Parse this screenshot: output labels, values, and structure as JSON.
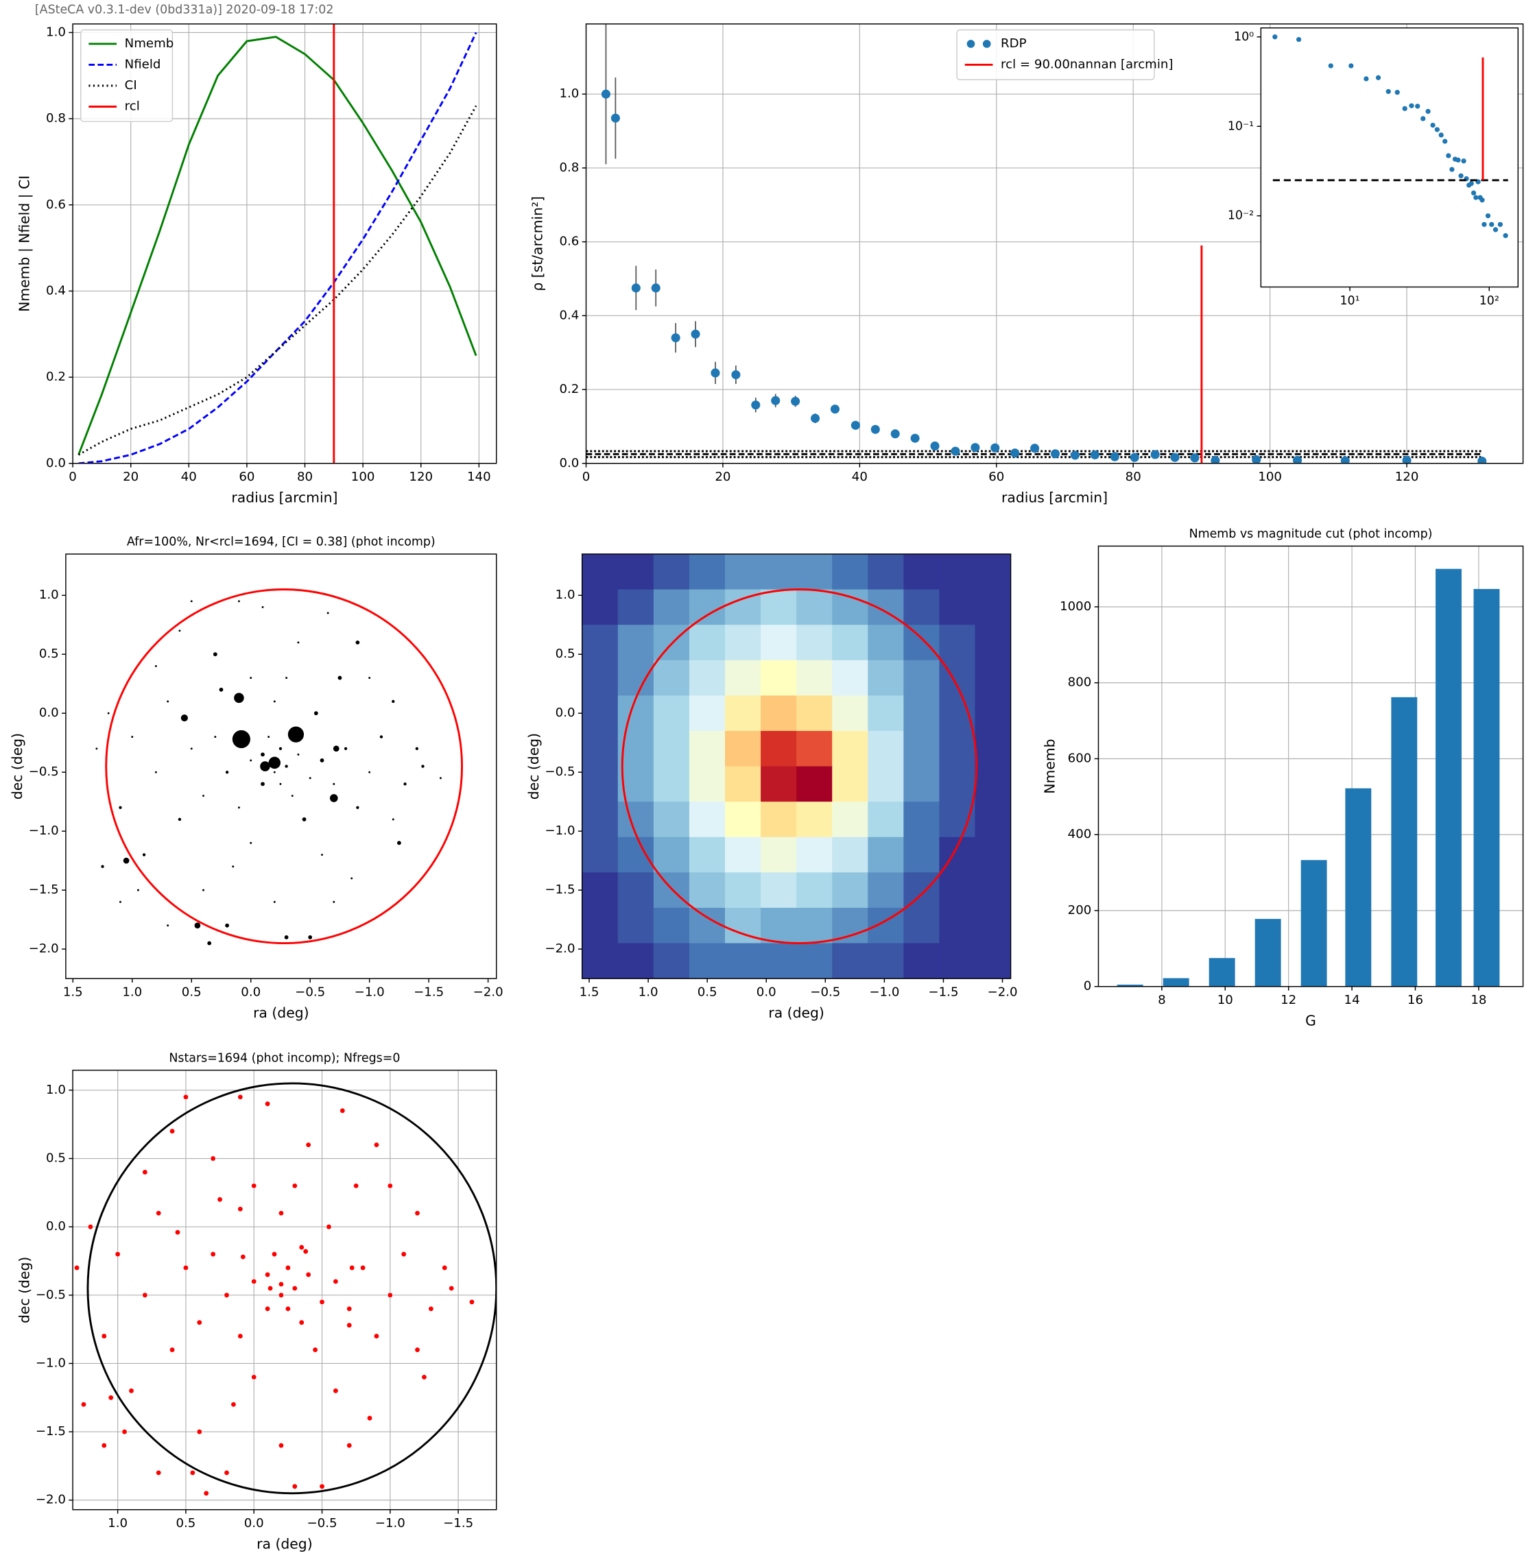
{
  "header": "[ASteCA v0.3.1-dev (0bd331a)] 2020-09-18 17:02",
  "chart_data": [
    {
      "type": "line",
      "xlabel": "radius [arcmin]",
      "ylabel": "Nmemb | Nfield | CI",
      "xlim": [
        0,
        146
      ],
      "ylim": [
        0,
        1.02
      ],
      "xticks": [
        0,
        20,
        40,
        60,
        80,
        100,
        120,
        140
      ],
      "yticks": [
        {
          "value": 0,
          "label": "0.0"
        },
        0.2,
        0.4,
        0.6,
        0.8,
        {
          "value": 1,
          "label": "1.0"
        }
      ],
      "grid": true,
      "legend": "upper left",
      "x": [
        2,
        10,
        20,
        30,
        40,
        50,
        60,
        70,
        80,
        90,
        100,
        110,
        120,
        130,
        139
      ],
      "series": [
        {
          "name": "Nmemb",
          "color": "#008000",
          "linestyle": "solid",
          "values": [
            0.02,
            0.16,
            0.35,
            0.54,
            0.74,
            0.9,
            0.98,
            0.99,
            0.95,
            0.89,
            0.79,
            0.68,
            0.56,
            0.41,
            0.25
          ]
        },
        {
          "name": "Nfield",
          "color": "#0000ff",
          "linestyle": "dashed",
          "values": [
            0,
            0.005,
            0.02,
            0.045,
            0.08,
            0.13,
            0.19,
            0.26,
            0.33,
            0.42,
            0.52,
            0.63,
            0.75,
            0.87,
            1.0
          ]
        },
        {
          "name": "CI",
          "color": "#000000",
          "linestyle": "dotted",
          "values": [
            0.02,
            0.05,
            0.08,
            0.1,
            0.13,
            0.16,
            0.2,
            0.26,
            0.32,
            0.38,
            0.45,
            0.53,
            0.62,
            0.72,
            0.83
          ]
        },
        {
          "name": "rcl",
          "color": "#ff0000",
          "linestyle": "solid",
          "vline": 90
        }
      ]
    },
    {
      "type": "errorbar",
      "xlabel": "radius [arcmin]",
      "ylabel": "ρ [st/arcmin²]",
      "xlim": [
        0,
        137
      ],
      "ylim": [
        0,
        1.19
      ],
      "xticks": [
        0,
        20,
        40,
        60,
        80,
        100,
        120
      ],
      "yticks": [
        {
          "value": 0,
          "label": "0.0"
        },
        0.2,
        0.4,
        0.6,
        0.8,
        {
          "value": 1,
          "label": "1.0"
        }
      ],
      "grid": true,
      "legend": "upper center",
      "series": [
        {
          "name": "RDP",
          "color": "#1f77b4",
          "x": [
            2.9,
            4.3,
            7.3,
            10.2,
            13.1,
            16,
            18.9,
            21.9,
            24.8,
            27.7,
            30.6,
            33.5,
            36.4,
            39.4,
            42.3,
            45.2,
            48.1,
            51,
            54,
            56.9,
            59.8,
            62.7,
            65.6,
            68.6,
            71.5,
            74.4,
            77.3,
            80.2,
            83.2,
            86.1,
            89,
            92,
            98,
            104,
            111,
            120,
            131
          ],
          "values": [
            1.0,
            0.935,
            0.475,
            0.475,
            0.34,
            0.35,
            0.245,
            0.24,
            0.158,
            0.17,
            0.168,
            0.122,
            0.147,
            0.103,
            0.092,
            0.08,
            0.068,
            0.047,
            0.033,
            0.043,
            0.042,
            0.028,
            0.041,
            0.026,
            0.022,
            0.023,
            0.018,
            0.016,
            0.024,
            0.016,
            0.015,
            0.008,
            0.01,
            0.008,
            0.007,
            0.008,
            0.006
          ],
          "errors": [
            0.19,
            0.11,
            0.06,
            0.05,
            0.04,
            0.035,
            0.03,
            0.025,
            0.02,
            0.018,
            0.015,
            0.013,
            0.012,
            0.01,
            0.01,
            0.008,
            0.007,
            0.006,
            0.005,
            0.005,
            0.005,
            0.004,
            0.004,
            0.004,
            0.003,
            0.003,
            0.003,
            0.003,
            0.003,
            0.003,
            0.002,
            0.002,
            0.002,
            0.002,
            0.002,
            0.002,
            0.002
          ]
        },
        {
          "name": "rcl = 90.00nannan [arcmin]",
          "color": "#ff0000",
          "vline": 90,
          "yrange": [
            0,
            0.59
          ]
        }
      ],
      "hlines": [
        0.017,
        0.025,
        0.033
      ],
      "inset": {
        "xlog": true,
        "ylog": true,
        "xlim": [
          2.3,
          161
        ],
        "ylim": [
          0.0016,
          1.26
        ],
        "xticks": [
          {
            "value": 10,
            "label": "10¹"
          },
          {
            "value": 100,
            "label": "10²"
          }
        ],
        "yticks": [
          {
            "value": 1,
            "label": "10⁰"
          },
          {
            "value": 0.1,
            "label": "10⁻¹"
          },
          {
            "value": 0.01,
            "label": "10⁻²"
          }
        ],
        "hline": 0.025
      }
    },
    {
      "type": "scatter",
      "title": "Afr=100%, Nr<rcl=1694, [CI = 0.38] (phot incomp)",
      "xlabel": "ra (deg)",
      "ylabel": "dec (deg)",
      "xlim": [
        1.56,
        -2.07
      ],
      "ylim": [
        -2.25,
        1.35
      ],
      "grid": false,
      "color": "#000000",
      "xticks": [
        1.5,
        {
          "value": 1,
          "label": "1.0"
        },
        0.5,
        {
          "value": 0,
          "label": "0.0"
        },
        {
          "value": -0.5,
          "label": "−0.5"
        },
        {
          "value": -1,
          "label": "−1.0"
        },
        {
          "value": -1.5,
          "label": "−1.5"
        },
        {
          "value": -2,
          "label": "−2.0"
        }
      ],
      "yticks": [
        {
          "value": -2,
          "label": "−2.0"
        },
        {
          "value": -1.5,
          "label": "−1.5"
        },
        {
          "value": -1,
          "label": "−1.0"
        },
        {
          "value": -0.5,
          "label": "−0.5"
        },
        {
          "value": 0,
          "label": "0.0"
        },
        0.5,
        {
          "value": 1,
          "label": "1.0"
        }
      ],
      "circle": {
        "center": [
          -0.28,
          -0.45
        ],
        "radius": 1.5,
        "color": "#ff0000"
      },
      "x": [
        -0.3,
        -0.2,
        -0.4,
        -0.1,
        -0.5,
        -0.25,
        -0.35,
        0.0,
        -0.6,
        -0.15,
        0.2,
        -0.7,
        0.1,
        -0.45,
        0.3,
        -0.8,
        -0.2,
        0.4,
        -0.55,
        0.0,
        -0.9,
        0.5,
        -0.3,
        0.25,
        -1.0,
        0.6,
        -0.6,
        0.15,
        -0.75,
        0.7,
        -1.1,
        0.8,
        -0.4,
        0.3,
        -1.2,
        0.9,
        -0.2,
        0.4,
        -0.9,
        0.6,
        -1.3,
        1.0,
        -0.1,
        0.2,
        -0.7,
        1.1,
        -1.0,
        0.8,
        -0.5,
        0.95,
        -1.4,
        1.2,
        0.1,
        -0.3,
        0.7,
        -1.2,
        -0.65,
        1.1,
        -1.25,
        0.5,
        -1.45,
        1.3,
        -0.85,
        0.35,
        -1.6,
        1.25,
        0.0,
        -0.35,
        -0.1,
        -0.25,
        0.08,
        -0.38,
        0.1,
        -0.12,
        -0.2,
        -0.7,
        0.56,
        -0.72,
        0.45,
        1.05
      ],
      "values": [
        -0.45,
        -0.5,
        -0.35,
        -0.6,
        -0.55,
        -0.3,
        -0.7,
        -0.4,
        -0.4,
        -0.2,
        -0.5,
        -0.6,
        -0.8,
        -0.9,
        -0.2,
        -0.3,
        0.1,
        -0.7,
        0.0,
        -1.1,
        -0.8,
        -0.3,
        0.3,
        0.2,
        -0.5,
        -0.9,
        -1.2,
        -1.3,
        0.3,
        0.1,
        -0.2,
        -0.5,
        0.6,
        0.5,
        -0.9,
        -1.2,
        -1.6,
        -1.5,
        0.6,
        0.7,
        -0.6,
        -0.2,
        0.9,
        -1.8,
        -1.6,
        -0.8,
        0.3,
        0.4,
        -1.9,
        -1.5,
        -0.3,
        0.0,
        0.95,
        -1.9,
        -1.8,
        0.1,
        0.85,
        -1.6,
        -1.1,
        0.95,
        -0.45,
        -0.3,
        -1.4,
        -1.95,
        -0.55,
        -1.3,
        0.3,
        -0.15,
        -0.35,
        -0.6,
        -0.22,
        -0.18,
        0.13,
        -0.45,
        -0.42,
        -0.72,
        -0.04,
        -0.3,
        -1.8,
        -1.25
      ],
      "sizes": [
        1.5,
        1,
        1,
        2,
        1,
        1.5,
        1,
        1,
        2,
        1,
        1.5,
        1,
        1,
        2,
        1,
        1.5,
        1,
        1,
        2,
        1,
        1.5,
        1,
        1,
        2,
        1,
        1.5,
        1,
        1,
        2,
        1,
        1.5,
        1,
        1,
        2,
        1,
        1.5,
        1,
        1,
        2,
        1,
        1.5,
        1,
        1,
        2,
        1,
        1.5,
        1,
        1,
        2,
        1,
        1.5,
        1,
        1,
        2,
        1,
        1.5,
        1,
        1,
        2,
        1,
        1.5,
        1,
        1,
        2,
        1,
        1.5,
        1,
        1,
        2,
        1,
        9,
        8,
        5,
        5,
        6,
        4,
        3.5,
        3,
        3,
        3
      ]
    },
    {
      "type": "heatmap",
      "xlabel": "ra (deg)",
      "ylabel": "dec (deg)",
      "xlim": [
        1.56,
        -2.07
      ],
      "ylim": [
        -2.25,
        1.35
      ],
      "grid": false,
      "colormap": "RdYlBu_r",
      "xticks": [
        1.5,
        {
          "value": 1,
          "label": "1.0"
        },
        0.5,
        {
          "value": 0,
          "label": "0.0"
        },
        {
          "value": -0.5,
          "label": "−0.5"
        },
        {
          "value": -1,
          "label": "−1.0"
        },
        {
          "value": -1.5,
          "label": "−1.5"
        },
        {
          "value": -2,
          "label": "−2.0"
        }
      ],
      "yticks": [
        {
          "value": -2,
          "label": "−2.0"
        },
        {
          "value": -1.5,
          "label": "−1.5"
        },
        {
          "value": -1,
          "label": "−1.0"
        },
        {
          "value": -0.5,
          "label": "−0.5"
        },
        {
          "value": 0,
          "label": "0.0"
        },
        0.5,
        {
          "value": 1,
          "label": "1.0"
        }
      ],
      "circle": {
        "center": [
          -0.28,
          -0.45
        ],
        "radius": 1.5,
        "color": "#ff0000"
      },
      "z": [
        [
          0,
          0,
          0.05,
          0.1,
          0.15,
          0.15,
          0.15,
          0.1,
          0.05,
          0,
          0,
          0
        ],
        [
          0,
          0.05,
          0.15,
          0.2,
          0.25,
          0.3,
          0.25,
          0.2,
          0.15,
          0.05,
          0,
          0
        ],
        [
          0.05,
          0.15,
          0.2,
          0.3,
          0.35,
          0.4,
          0.35,
          0.3,
          0.2,
          0.1,
          0.05,
          0
        ],
        [
          0.05,
          0.15,
          0.25,
          0.35,
          0.45,
          0.5,
          0.45,
          0.4,
          0.25,
          0.15,
          0.05,
          0
        ],
        [
          0.05,
          0.2,
          0.3,
          0.4,
          0.55,
          0.65,
          0.6,
          0.45,
          0.3,
          0.15,
          0.05,
          0
        ],
        [
          0.05,
          0.2,
          0.3,
          0.45,
          0.65,
          0.9,
          0.85,
          0.55,
          0.35,
          0.15,
          0.05,
          0
        ],
        [
          0.05,
          0.2,
          0.3,
          0.45,
          0.6,
          0.95,
          1.0,
          0.55,
          0.35,
          0.15,
          0.05,
          0
        ],
        [
          0.05,
          0.15,
          0.25,
          0.4,
          0.5,
          0.6,
          0.55,
          0.45,
          0.3,
          0.1,
          0.05,
          0
        ],
        [
          0.05,
          0.1,
          0.2,
          0.3,
          0.4,
          0.45,
          0.4,
          0.35,
          0.2,
          0.1,
          0,
          0
        ],
        [
          0,
          0.05,
          0.15,
          0.25,
          0.3,
          0.35,
          0.3,
          0.25,
          0.15,
          0.05,
          0,
          0
        ],
        [
          0,
          0.05,
          0.1,
          0.15,
          0.25,
          0.2,
          0.2,
          0.15,
          0.1,
          0.05,
          0,
          0
        ],
        [
          0,
          0,
          0.05,
          0.1,
          0.1,
          0.1,
          0.1,
          0.05,
          0.05,
          0,
          0,
          0
        ]
      ]
    },
    {
      "type": "bar",
      "title": "Nmemb vs magnitude cut (phot incomp)",
      "xlabel": "G",
      "ylabel": "Nmemb",
      "xlim": [
        6,
        19.4
      ],
      "ylim": [
        0,
        1160
      ],
      "grid": true,
      "color": "#1f77b4",
      "width": 0.82,
      "xticks": [
        8,
        10,
        12,
        14,
        16,
        18
      ],
      "yticks": [
        0,
        200,
        400,
        600,
        800,
        1000
      ],
      "x": [
        7.0,
        8.45,
        9.9,
        11.35,
        12.8,
        14.2,
        15.65,
        17.05,
        18.25
      ],
      "values": [
        5,
        22,
        75,
        178,
        333,
        522,
        762,
        1100,
        1047
      ]
    },
    {
      "type": "scatter",
      "title": "Nstars=1694 (phot incomp); Nfregs=0",
      "xlabel": "ra (deg)",
      "ylabel": "dec (deg)",
      "xlim": [
        1.33,
        -1.78
      ],
      "ylim": [
        -2.07,
        1.146
      ],
      "grid": true,
      "color": "#ff0000",
      "xticks": [
        {
          "value": 1,
          "label": "1.0"
        },
        0.5,
        {
          "value": 0,
          "label": "0.0"
        },
        {
          "value": -0.5,
          "label": "−0.5"
        },
        {
          "value": -1,
          "label": "−1.0"
        },
        {
          "value": -1.5,
          "label": "−1.5"
        }
      ],
      "yticks": [
        {
          "value": -2,
          "label": "−2.0"
        },
        {
          "value": -1.5,
          "label": "−1.5"
        },
        {
          "value": -1,
          "label": "−1.0"
        },
        {
          "value": -0.5,
          "label": "−0.5"
        },
        {
          "value": 0,
          "label": "0.0"
        },
        0.5,
        {
          "value": 1,
          "label": "1.0"
        }
      ],
      "circle": {
        "center": [
          -0.28,
          -0.45
        ],
        "radius": 1.5,
        "color": "#000000"
      }
    }
  ]
}
